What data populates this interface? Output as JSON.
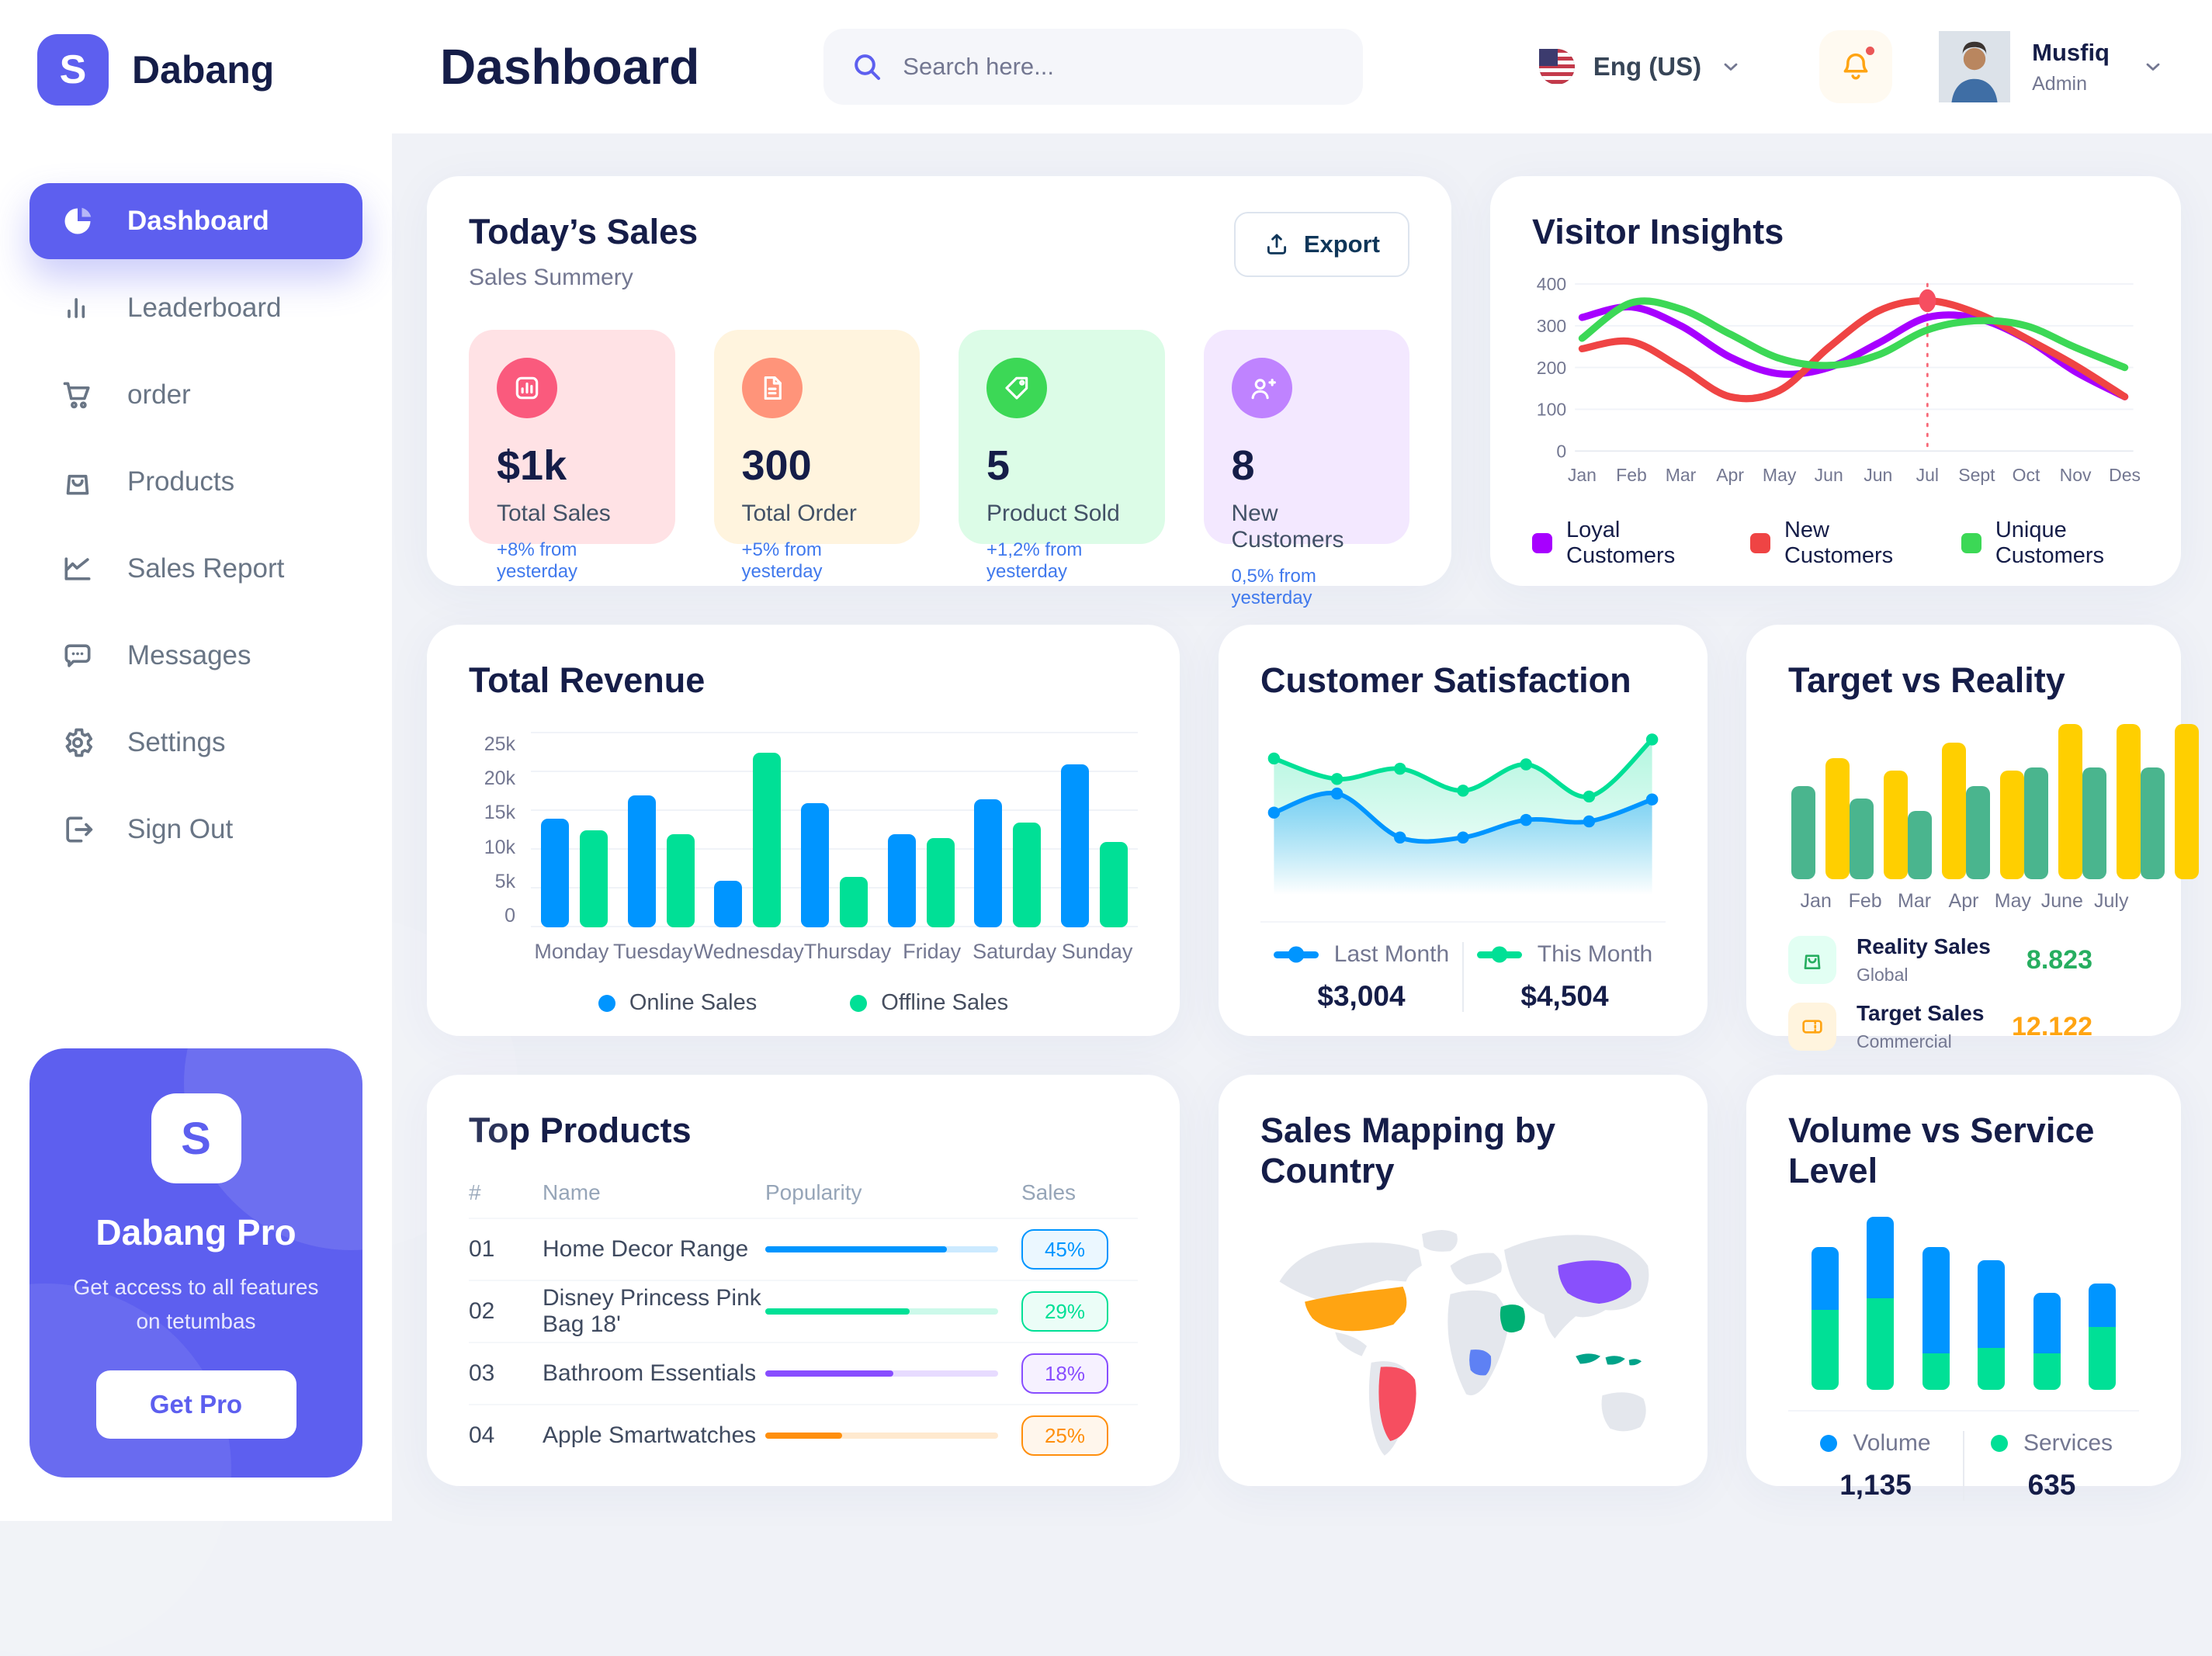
{
  "brand": {
    "name": "Dabang",
    "logo_letter": "S"
  },
  "sidebar": {
    "items": [
      {
        "id": "dashboard",
        "label": "Dashboard",
        "icon": "pie-chart-icon",
        "active": true
      },
      {
        "id": "leaderboard",
        "label": "Leaderboard",
        "icon": "bar-chart-icon",
        "active": false
      },
      {
        "id": "order",
        "label": "order",
        "icon": "cart-icon",
        "active": false
      },
      {
        "id": "products",
        "label": "Products",
        "icon": "bag-icon",
        "active": false
      },
      {
        "id": "sales-report",
        "label": "Sales Report",
        "icon": "line-chart-icon",
        "active": false
      },
      {
        "id": "messages",
        "label": "Messages",
        "icon": "chat-icon",
        "active": false
      },
      {
        "id": "settings",
        "label": "Settings",
        "icon": "gear-icon",
        "active": false
      },
      {
        "id": "sign-out",
        "label": "Sign Out",
        "icon": "sign-out-icon",
        "active": false
      }
    ],
    "pro_card": {
      "title": "Dabang Pro",
      "description": "Get access to all features on tetumbas",
      "button_label": "Get Pro",
      "logo_letter": "S"
    }
  },
  "header": {
    "title": "Dashboard",
    "search_placeholder": "Search here...",
    "language": {
      "label": "Eng (US)",
      "flag": "us-flag-icon"
    },
    "notifications": {
      "has_unread": true
    },
    "user": {
      "name": "Musfiq",
      "role": "Admin"
    }
  },
  "today_sales": {
    "title": "Today’s Sales",
    "subtitle": "Sales Summery",
    "export_label": "Export",
    "cards": [
      {
        "value": "$1k",
        "label": "Total Sales",
        "delta": "+8% from yesterday",
        "bg": "#FFE2E5",
        "icon_bg": "#FA5A7D",
        "icon": "chart-icon"
      },
      {
        "value": "300",
        "label": "Total Order",
        "delta": "+5% from yesterday",
        "bg": "#FFF4DE",
        "icon_bg": "#FF947A",
        "icon": "order-icon"
      },
      {
        "value": "5",
        "label": "Product Sold",
        "delta": "+1,2% from yesterday",
        "bg": "#DCFCE7",
        "icon_bg": "#3CD856",
        "icon": "tag-icon"
      },
      {
        "value": "8",
        "label": "New Customers",
        "delta": "0,5% from yesterday",
        "bg": "#F3E8FF",
        "icon_bg": "#BF83FF",
        "icon": "user-plus-icon"
      }
    ]
  },
  "visitor_insights": {
    "title": "Visitor Insights",
    "chart_data": {
      "type": "line",
      "x": [
        "Jan",
        "Feb",
        "Mar",
        "Apr",
        "May",
        "Jun",
        "Jun",
        "Jul",
        "Sept",
        "Oct",
        "Nov",
        "Des"
      ],
      "ylim": [
        0,
        400
      ],
      "yticks": [
        0,
        100,
        200,
        300,
        400
      ],
      "series": [
        {
          "name": "Loyal Customers",
          "color": "#A700FF",
          "values": [
            320,
            345,
            300,
            225,
            185,
            200,
            258,
            320,
            318,
            268,
            190,
            130
          ]
        },
        {
          "name": "New Customers",
          "color": "#EF4444",
          "values": [
            245,
            262,
            200,
            130,
            145,
            248,
            335,
            360,
            330,
            270,
            205,
            130
          ]
        },
        {
          "name": "Unique Customers",
          "color": "#3CD856",
          "values": [
            270,
            355,
            340,
            280,
            222,
            205,
            230,
            290,
            312,
            300,
            248,
            200
          ]
        }
      ],
      "highlight": {
        "x_index": 7,
        "series": "New Customers",
        "value": 360,
        "color": "#F64E60"
      }
    }
  },
  "total_revenue": {
    "title": "Total Revenue",
    "chart_data": {
      "type": "bar",
      "categories": [
        "Monday",
        "Tuesday",
        "Wednesday",
        "Thursday",
        "Friday",
        "Saturday",
        "Sunday"
      ],
      "ytick_labels": [
        "0",
        "5k",
        "10k",
        "15k",
        "20k",
        "25k"
      ],
      "ylim": [
        0,
        25
      ],
      "series": [
        {
          "name": "Online Sales",
          "color": "#0095FF",
          "values": [
            14,
            17,
            6,
            16,
            12,
            16.5,
            21
          ]
        },
        {
          "name": "Offline Sales",
          "color": "#00E096",
          "values": [
            12.5,
            12,
            22.5,
            6.5,
            11.5,
            13.5,
            11
          ]
        }
      ]
    }
  },
  "customer_satisfaction": {
    "title": "Customer Satisfaction",
    "chart_data": {
      "type": "area",
      "series": [
        {
          "name": "Last Month",
          "color": "#0095FF",
          "total": "$3,004",
          "values": [
            45,
            58,
            28,
            28,
            40,
            39,
            54
          ]
        },
        {
          "name": "This Month",
          "color": "#00E096",
          "total": "$4,504",
          "values": [
            82,
            68,
            75,
            60,
            78,
            56,
            95
          ]
        }
      ]
    }
  },
  "target_vs_reality": {
    "title": "Target vs Reality",
    "chart_data": {
      "type": "bar",
      "categories": [
        "Jan",
        "Feb",
        "Mar",
        "Apr",
        "May",
        "June",
        "July"
      ],
      "series": [
        {
          "name": "Reality Sales",
          "color": "#4AB58E",
          "values": [
            60,
            52,
            44,
            60,
            72,
            72,
            72
          ]
        },
        {
          "name": "Target Sales",
          "color": "#FFCF00",
          "values": [
            78,
            70,
            88,
            70,
            100,
            100,
            100
          ]
        }
      ]
    },
    "legend": [
      {
        "title": "Reality Sales",
        "subtitle": "Global",
        "value": "8.823",
        "value_color": "#27AE60",
        "tile_bg": "#E2FFF3",
        "icon": "bag-icon",
        "icon_color": "#27AE60"
      },
      {
        "title": "Target Sales",
        "subtitle": "Commercial",
        "value": "12.122",
        "value_color": "#FFA412",
        "tile_bg": "#FFF4DE",
        "icon": "ticket-icon",
        "icon_color": "#FFA412"
      }
    ]
  },
  "top_products": {
    "title": "Top Products",
    "headers": [
      "#",
      "Name",
      "Popularity",
      "Sales"
    ],
    "rows": [
      {
        "num": "01",
        "name": "Home Decor Range",
        "popularity": 78,
        "sales": "45%",
        "color": "#0095FF"
      },
      {
        "num": "02",
        "name": "Disney Princess Pink Bag 18'",
        "popularity": 62,
        "sales": "29%",
        "color": "#00E096"
      },
      {
        "num": "03",
        "name": "Bathroom Essentials",
        "popularity": 55,
        "sales": "18%",
        "color": "#884DFF"
      },
      {
        "num": "04",
        "name": "Apple Smartwatches",
        "popularity": 33,
        "sales": "25%",
        "color": "#FF8F0D"
      }
    ]
  },
  "sales_mapping": {
    "title": "Sales Mapping by Country",
    "countries": [
      {
        "id": "usa",
        "color": "#FFA412"
      },
      {
        "id": "brazil",
        "color": "#F64E60"
      },
      {
        "id": "china",
        "color": "#8950FC"
      },
      {
        "id": "saudi-arabia",
        "color": "#00B074"
      },
      {
        "id": "congo",
        "color": "#5E81F4"
      },
      {
        "id": "indonesia",
        "color": "#00A389"
      }
    ]
  },
  "volume_service": {
    "title": "Volume vs Service Level",
    "chart_data": {
      "type": "stacked-bar",
      "series": [
        {
          "name": "Volume",
          "color": "#0095FF",
          "total": "1,135",
          "values": [
            33,
            43,
            56,
            46,
            32,
            23
          ]
        },
        {
          "name": "Services",
          "color": "#00E096",
          "total": "635",
          "values": [
            42,
            48,
            19,
            22,
            19,
            33
          ]
        }
      ]
    }
  }
}
